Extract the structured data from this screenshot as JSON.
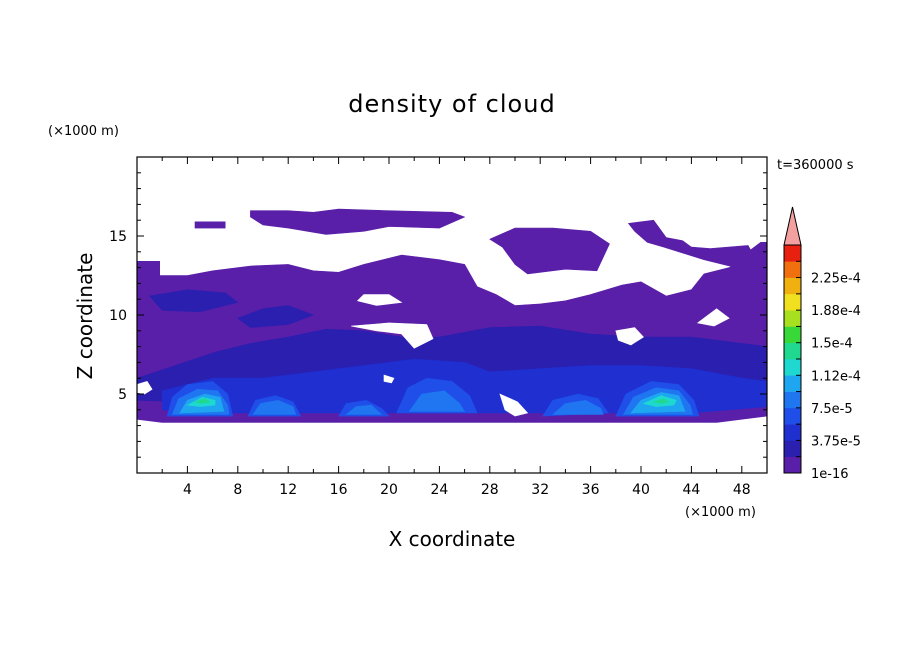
{
  "chart_data": {
    "type": "heatmap",
    "title": "density of cloud",
    "xlabel": "X coordinate",
    "ylabel": "Z coordinate",
    "x_unit": "(×1000 m)",
    "y_unit": "(×1000 m)",
    "time_label": "t=360000 s",
    "xlim": [
      0,
      50
    ],
    "ylim": [
      0,
      20
    ],
    "x_ticks": [
      4,
      8,
      12,
      16,
      20,
      24,
      28,
      32,
      36,
      40,
      44,
      48
    ],
    "y_ticks": [
      5,
      10,
      15
    ],
    "x_tick_labels": [
      "4",
      "8",
      "12",
      "16",
      "20",
      "24",
      "28",
      "32",
      "36",
      "40",
      "44",
      "48"
    ],
    "y_tick_labels": [
      "5",
      "10",
      "15"
    ],
    "colorbar": {
      "levels": [
        1e-16,
        1.875e-05,
        3.75e-05,
        5.625e-05,
        7.5e-05,
        9.375e-05,
        0.0001125,
        0.00013125,
        0.00015,
        0.00016875,
        0.0001875,
        0.00020625,
        0.000225,
        0.00024375
      ],
      "tick_labels": [
        "1e-16",
        "3.75e-5",
        "7.5e-5",
        "1.12e-4",
        "1.5e-4",
        "1.88e-4",
        "2.25e-4"
      ],
      "colors": [
        "#5a1fa8",
        "#2b1fb0",
        "#1f2fd0",
        "#1f4ee8",
        "#1f76f0",
        "#1fa6f0",
        "#1fd8d0",
        "#20d890",
        "#38d838",
        "#a8e020",
        "#f0e020",
        "#f0b010",
        "#f07010",
        "#e82010"
      ],
      "extend_color": "#f4a0a0"
    },
    "regions": [
      {
        "level": 0,
        "polygon": [
          [
            0,
            4.2
          ],
          [
            0,
            13.4
          ],
          [
            1.8,
            13.4
          ],
          [
            1.8,
            12.5
          ],
          [
            4,
            12.5
          ],
          [
            6,
            12.8
          ],
          [
            9,
            13.1
          ],
          [
            12,
            13.2
          ],
          [
            14,
            12.8
          ],
          [
            16,
            12.7
          ],
          [
            18,
            13.2
          ],
          [
            21,
            13.8
          ],
          [
            24,
            13.5
          ],
          [
            26,
            13.2
          ],
          [
            27,
            11.8
          ],
          [
            28.5,
            11.3
          ],
          [
            30,
            10.6
          ],
          [
            32,
            10.7
          ],
          [
            34,
            10.9
          ],
          [
            36,
            11.3
          ],
          [
            38.5,
            11.9
          ],
          [
            40,
            12.1
          ],
          [
            42,
            11.2
          ],
          [
            44,
            11.6
          ],
          [
            45,
            12.6
          ],
          [
            47,
            13
          ],
          [
            48,
            13.7
          ],
          [
            49.5,
            14.6
          ],
          [
            50,
            14.6
          ],
          [
            50,
            3.6
          ],
          [
            46,
            3.2
          ],
          [
            40,
            3.2
          ],
          [
            32,
            3.2
          ],
          [
            24,
            3.2
          ],
          [
            16,
            3.2
          ],
          [
            8,
            3.2
          ],
          [
            2,
            3.2
          ],
          [
            0,
            3.4
          ]
        ]
      },
      {
        "level": 0,
        "polygon": [
          [
            9,
            16.6
          ],
          [
            12,
            16.6
          ],
          [
            14,
            16.5
          ],
          [
            16,
            16.7
          ],
          [
            20,
            16.6
          ],
          [
            25,
            16.5
          ],
          [
            26,
            16.2
          ],
          [
            24,
            15.5
          ],
          [
            20,
            15.6
          ],
          [
            18,
            15.3
          ],
          [
            15,
            15.1
          ],
          [
            12,
            15.5
          ],
          [
            10,
            15.7
          ],
          [
            9,
            16.2
          ]
        ]
      },
      {
        "level": 0,
        "polygon": [
          [
            28,
            14.8
          ],
          [
            30,
            15.5
          ],
          [
            33,
            15.5
          ],
          [
            36,
            15.3
          ],
          [
            37.5,
            14.5
          ],
          [
            36.5,
            12.8
          ],
          [
            34,
            12.9
          ],
          [
            31,
            12.6
          ],
          [
            30,
            13.2
          ],
          [
            29,
            14.3
          ]
        ]
      },
      {
        "level": 0,
        "polygon": [
          [
            39,
            15.8
          ],
          [
            41,
            16.0
          ],
          [
            42,
            14.9
          ],
          [
            43.3,
            14.7
          ],
          [
            44,
            14.3
          ],
          [
            45.5,
            14.2
          ],
          [
            48.5,
            14.4
          ],
          [
            49.2,
            13.4
          ],
          [
            47,
            13.1
          ],
          [
            45,
            13.5
          ],
          [
            43,
            14.0
          ],
          [
            41.8,
            14.3
          ],
          [
            40.5,
            14.6
          ],
          [
            39.5,
            15.3
          ]
        ]
      },
      {
        "level": 0,
        "polygon": [
          [
            4.6,
            15.9
          ],
          [
            7,
            15.9
          ],
          [
            7,
            15.5
          ],
          [
            4.6,
            15.5
          ]
        ]
      },
      {
        "level": 1,
        "polygon": [
          [
            0,
            6.0
          ],
          [
            3,
            6.8
          ],
          [
            6,
            7.6
          ],
          [
            9,
            8.2
          ],
          [
            12,
            8.6
          ],
          [
            15,
            9.1
          ],
          [
            18,
            9.0
          ],
          [
            21,
            8.6
          ],
          [
            24,
            8.6
          ],
          [
            28,
            9.2
          ],
          [
            32,
            9.3
          ],
          [
            36,
            8.8
          ],
          [
            40,
            8.6
          ],
          [
            44,
            8.6
          ],
          [
            48,
            8.2
          ],
          [
            50,
            8
          ],
          [
            50,
            4.8
          ],
          [
            46,
            4.6
          ],
          [
            40,
            4.6
          ],
          [
            32,
            4.8
          ],
          [
            24,
            4.6
          ],
          [
            16,
            4.4
          ],
          [
            8,
            4.4
          ],
          [
            0,
            4.6
          ]
        ]
      },
      {
        "level": 1,
        "polygon": [
          [
            8,
            9.8
          ],
          [
            10,
            10.4
          ],
          [
            12,
            10.6
          ],
          [
            14,
            10.0
          ],
          [
            12,
            9.4
          ],
          [
            9,
            9.2
          ]
        ]
      },
      {
        "level": 1,
        "polygon": [
          [
            1,
            11.2
          ],
          [
            4,
            11.6
          ],
          [
            7,
            11.4
          ],
          [
            8,
            10.8
          ],
          [
            5,
            10.2
          ],
          [
            2,
            10.3
          ]
        ]
      },
      {
        "level": 2,
        "polygon": [
          [
            18,
            6.8
          ],
          [
            22,
            7.2
          ],
          [
            26,
            7.0
          ],
          [
            28,
            6.4
          ],
          [
            32,
            6.6
          ],
          [
            36,
            6.8
          ],
          [
            40,
            6.8
          ],
          [
            44,
            6.6
          ],
          [
            48,
            6.0
          ],
          [
            50,
            5.8
          ],
          [
            50,
            4.2
          ],
          [
            44,
            3.8
          ],
          [
            36,
            3.8
          ],
          [
            28,
            3.8
          ],
          [
            20,
            3.8
          ],
          [
            12,
            3.8
          ],
          [
            6,
            3.8
          ],
          [
            2,
            4.0
          ],
          [
            2,
            5.2
          ],
          [
            6,
            6.0
          ],
          [
            10,
            6.0
          ],
          [
            14,
            6.4
          ]
        ]
      },
      {
        "level": 3,
        "polygon": [
          [
            2.4,
            3.6
          ],
          [
            2.8,
            4.8
          ],
          [
            4,
            5.6
          ],
          [
            6,
            5.8
          ],
          [
            7.2,
            5.0
          ],
          [
            7.6,
            3.6
          ]
        ]
      },
      {
        "level": 3,
        "polygon": [
          [
            8.8,
            3.6
          ],
          [
            9.4,
            4.6
          ],
          [
            11,
            4.9
          ],
          [
            12.4,
            4.5
          ],
          [
            13,
            3.6
          ]
        ]
      },
      {
        "level": 3,
        "polygon": [
          [
            16,
            3.6
          ],
          [
            16.6,
            4.4
          ],
          [
            18.2,
            4.6
          ],
          [
            19.4,
            4.1
          ],
          [
            20,
            3.6
          ]
        ]
      },
      {
        "level": 3,
        "polygon": [
          [
            20.6,
            3.8
          ],
          [
            21.5,
            5.4
          ],
          [
            23,
            6.0
          ],
          [
            25,
            5.8
          ],
          [
            26.4,
            4.9
          ],
          [
            27,
            3.8
          ]
        ]
      },
      {
        "level": 3,
        "polygon": [
          [
            32.2,
            3.6
          ],
          [
            33,
            4.6
          ],
          [
            35,
            5.0
          ],
          [
            36.6,
            4.7
          ],
          [
            37.4,
            3.8
          ]
        ]
      },
      {
        "level": 3,
        "polygon": [
          [
            38,
            3.6
          ],
          [
            38.8,
            5.0
          ],
          [
            40.8,
            5.8
          ],
          [
            43,
            5.6
          ],
          [
            44.2,
            4.6
          ],
          [
            44.6,
            3.6
          ]
        ]
      },
      {
        "level": 4,
        "polygon": [
          [
            2.8,
            3.7
          ],
          [
            3.3,
            4.7
          ],
          [
            4.8,
            5.3
          ],
          [
            6.4,
            5.2
          ],
          [
            7.2,
            4.3
          ],
          [
            7.3,
            3.7
          ]
        ]
      },
      {
        "level": 4,
        "polygon": [
          [
            9.2,
            3.7
          ],
          [
            9.8,
            4.4
          ],
          [
            11.2,
            4.6
          ],
          [
            12.4,
            4.2
          ],
          [
            12.6,
            3.7
          ]
        ]
      },
      {
        "level": 4,
        "polygon": [
          [
            16.6,
            3.7
          ],
          [
            17.4,
            4.2
          ],
          [
            18.6,
            4.3
          ],
          [
            19.4,
            3.7
          ]
        ]
      },
      {
        "level": 4,
        "polygon": [
          [
            21.6,
            3.9
          ],
          [
            22.6,
            5.0
          ],
          [
            24.4,
            5.2
          ],
          [
            25.6,
            4.4
          ],
          [
            26,
            3.9
          ]
        ]
      },
      {
        "level": 4,
        "polygon": [
          [
            33,
            3.7
          ],
          [
            34,
            4.4
          ],
          [
            35.6,
            4.6
          ],
          [
            36.8,
            4.1
          ],
          [
            37,
            3.7
          ]
        ]
      },
      {
        "level": 4,
        "polygon": [
          [
            38.6,
            3.7
          ],
          [
            39.4,
            4.8
          ],
          [
            41.2,
            5.4
          ],
          [
            43.0,
            5.2
          ],
          [
            43.9,
            4.3
          ],
          [
            44.1,
            3.7
          ]
        ]
      },
      {
        "level": 5,
        "polygon": [
          [
            3.4,
            3.8
          ],
          [
            4,
            4.6
          ],
          [
            5.4,
            5.0
          ],
          [
            6.6,
            4.8
          ],
          [
            6.9,
            3.9
          ]
        ]
      },
      {
        "level": 5,
        "polygon": [
          [
            39.2,
            3.8
          ],
          [
            40,
            4.6
          ],
          [
            41.6,
            5.1
          ],
          [
            43,
            4.9
          ],
          [
            43.5,
            3.9
          ]
        ]
      },
      {
        "level": 6,
        "polygon": [
          [
            4.0,
            4.3
          ],
          [
            5.2,
            4.8
          ],
          [
            6.2,
            4.6
          ],
          [
            6.2,
            4.3
          ],
          [
            5.0,
            4.2
          ]
        ]
      },
      {
        "level": 6,
        "polygon": [
          [
            40.2,
            4.4
          ],
          [
            41.6,
            4.9
          ],
          [
            42.8,
            4.6
          ],
          [
            42.6,
            4.3
          ],
          [
            41.2,
            4.2
          ]
        ]
      },
      {
        "level": 7,
        "polygon": [
          [
            4.6,
            4.5
          ],
          [
            5.4,
            4.7
          ],
          [
            5.8,
            4.5
          ],
          [
            5.2,
            4.4
          ]
        ]
      },
      {
        "level": 7,
        "polygon": [
          [
            41.0,
            4.5
          ],
          [
            41.8,
            4.7
          ],
          [
            42.2,
            4.5
          ],
          [
            41.6,
            4.4
          ]
        ]
      },
      {
        "level": -1,
        "polygon": [
          [
            18,
            11.3
          ],
          [
            20,
            11.3
          ],
          [
            21,
            10.8
          ],
          [
            19,
            10.6
          ],
          [
            17.5,
            10.9
          ]
        ]
      },
      {
        "level": -1,
        "polygon": [
          [
            17,
            9.3
          ],
          [
            20,
            9.5
          ],
          [
            23,
            9.4
          ],
          [
            23.5,
            8.5
          ],
          [
            22,
            7.9
          ],
          [
            21,
            8.8
          ],
          [
            19,
            9.0
          ]
        ]
      },
      {
        "level": -1,
        "polygon": [
          [
            38,
            9.0
          ],
          [
            39.5,
            9.2
          ],
          [
            40.2,
            8.6
          ],
          [
            39.2,
            8.1
          ],
          [
            38.2,
            8.4
          ]
        ]
      },
      {
        "level": -1,
        "polygon": [
          [
            44.5,
            9.5
          ],
          [
            46,
            10.4
          ],
          [
            47,
            9.8
          ],
          [
            45.8,
            9.3
          ]
        ]
      },
      {
        "level": -1,
        "polygon": [
          [
            19.6,
            6.2
          ],
          [
            20.4,
            6.0
          ],
          [
            20.2,
            5.7
          ],
          [
            19.6,
            5.8
          ]
        ]
      },
      {
        "level": -1,
        "polygon": [
          [
            28.8,
            5.0
          ],
          [
            30.2,
            4.5
          ],
          [
            31,
            3.8
          ],
          [
            30,
            3.6
          ],
          [
            29.2,
            4.0
          ]
        ]
      },
      {
        "level": -1,
        "polygon": [
          [
            0,
            5.6
          ],
          [
            0.8,
            5.8
          ],
          [
            1.2,
            5.3
          ],
          [
            0.6,
            5.0
          ],
          [
            0,
            5.1
          ]
        ]
      }
    ]
  }
}
